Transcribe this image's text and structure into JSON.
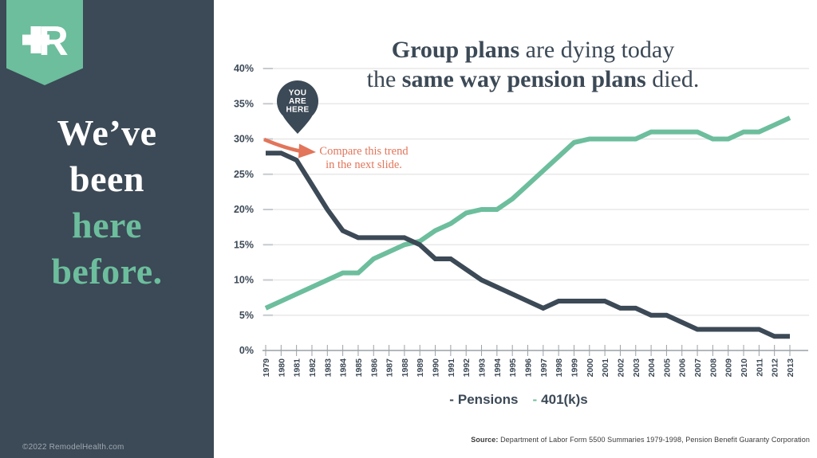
{
  "sidebar": {
    "logo_name": "remodel-health-plus-r-monogram",
    "headline": {
      "lines": [
        {
          "text": "We’ve",
          "color": "white"
        },
        {
          "text": "been",
          "color": "white"
        },
        {
          "text": "here",
          "color": "teal"
        },
        {
          "text": "before.",
          "color": "teal"
        }
      ]
    },
    "copyright": "©2022 RemodelHealth.com"
  },
  "title": {
    "line1_bold": "Group plans",
    "line1_rest": " are dying today",
    "line2_pre": "the ",
    "line2_bold": "same way pension plans",
    "line2_post": " died."
  },
  "annotation": {
    "pin_lines": [
      "YOU",
      "ARE",
      "HERE"
    ],
    "note_lines": [
      "Compare this trend",
      "in the next slide."
    ]
  },
  "legend": {
    "items": [
      {
        "label": "Pensions",
        "color": "#3C4956"
      },
      {
        "label": "401(k)s",
        "color": "#6CBE9D"
      }
    ]
  },
  "source": {
    "prefix": "Source:",
    "text": " Department of Labor Form 5500 Summaries 1979-1998, Pension Benefit Guaranty Corporation"
  },
  "colors": {
    "slate": "#3C4956",
    "teal": "#6CBE9D",
    "coral": "#E2755A",
    "grid": "#E8E8E8",
    "grid_tick": "#C6CBCF",
    "axis": "#9AA0A5",
    "background": "#FFFFFF"
  },
  "chart_data": {
    "type": "line",
    "title": "Group plans are dying today the same way pension plans died.",
    "x": [
      1979,
      1980,
      1981,
      1982,
      1983,
      1984,
      1985,
      1986,
      1987,
      1988,
      1989,
      1990,
      1991,
      1992,
      1993,
      1994,
      1995,
      1996,
      1997,
      1998,
      1999,
      2000,
      2001,
      2002,
      2003,
      2004,
      2005,
      2006,
      2007,
      2008,
      2009,
      2010,
      2011,
      2012,
      2013
    ],
    "series": [
      {
        "name": "Pensions",
        "color": "#3C4956",
        "values": [
          28,
          28,
          27,
          23.5,
          20,
          17,
          16,
          16,
          16,
          16,
          15,
          13,
          13,
          11.5,
          10,
          9,
          8,
          7,
          6,
          7,
          7,
          7,
          7,
          6,
          6,
          5,
          5,
          4,
          3,
          3,
          3,
          3,
          3,
          2,
          2
        ]
      },
      {
        "name": "401(k)s",
        "color": "#6CBE9D",
        "values": [
          6,
          7,
          8,
          9,
          10,
          11,
          11,
          13,
          14,
          15,
          15.5,
          17,
          18,
          19.5,
          20,
          20,
          21.5,
          23.5,
          25.5,
          27.5,
          29.5,
          30,
          30,
          30,
          30,
          31,
          31,
          31,
          31,
          30,
          30,
          31,
          31,
          32,
          33
        ]
      }
    ],
    "xlabel": "",
    "ylabel": "",
    "ylim": [
      0,
      40
    ],
    "ytick_labels": [
      "0%",
      "5%",
      "10%",
      "15%",
      "20%",
      "25%",
      "30%",
      "35%",
      "40%"
    ],
    "grid": true,
    "legend_position": "bottom"
  }
}
